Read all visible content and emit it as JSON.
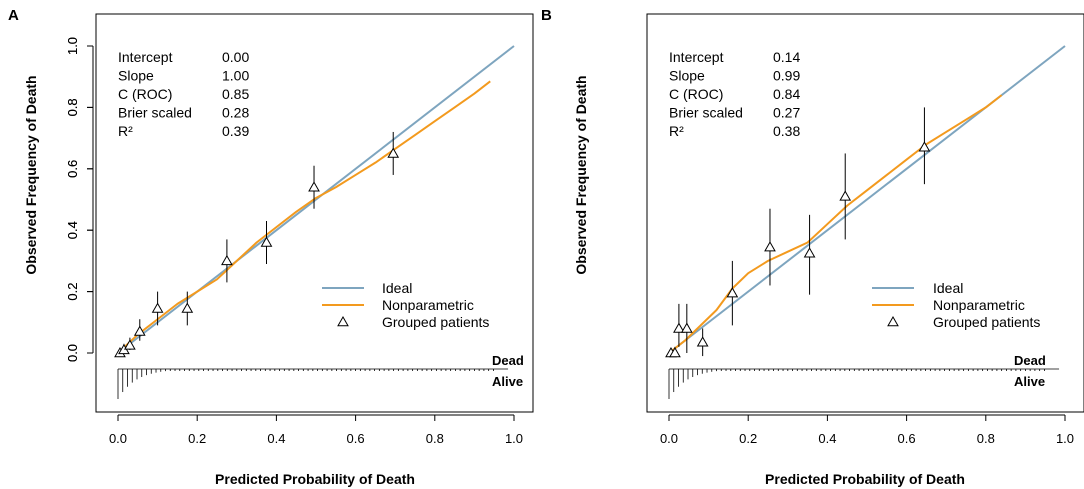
{
  "chart_data": [
    {
      "type": "scatter",
      "panel_label": "A",
      "xlabel": "Predicted Probability of Death",
      "ylabel": "Observed Frequency of Death",
      "xlim": [
        0,
        1
      ],
      "ylim": [
        -0.2,
        1.0
      ],
      "xticks": [
        "0.0",
        "0.2",
        "0.4",
        "0.6",
        "0.8",
        "1.0"
      ],
      "yticks": [
        "0.0",
        "0.2",
        "0.4",
        "0.6",
        "0.8",
        "1.0"
      ],
      "stats": [
        {
          "label": "Intercept",
          "value": "0.00"
        },
        {
          "label": "Slope",
          "value": "1.00"
        },
        {
          "label": "C (ROC)",
          "value": "0.85"
        },
        {
          "label": "Brier scaled",
          "value": "0.28"
        },
        {
          "label": "R²",
          "value": "0.39"
        }
      ],
      "legend": {
        "ideal": "Ideal",
        "nonparametric": "Nonparametric",
        "grouped": "Grouped patients",
        "position": "right"
      },
      "rug_labels": {
        "top": "Dead",
        "bottom": "Alive"
      },
      "series": [
        {
          "name": "Ideal",
          "color": "#7ea5bf",
          "x": [
            0,
            1
          ],
          "y": [
            0,
            1
          ]
        },
        {
          "name": "Nonparametric",
          "color": "#f39a1e",
          "x": [
            0.0,
            0.05,
            0.1,
            0.15,
            0.2,
            0.25,
            0.3,
            0.35,
            0.4,
            0.45,
            0.5,
            0.55,
            0.6,
            0.65,
            0.7,
            0.75,
            0.8,
            0.85,
            0.9,
            0.94
          ],
          "y": [
            0.0,
            0.06,
            0.11,
            0.16,
            0.2,
            0.24,
            0.3,
            0.36,
            0.41,
            0.46,
            0.505,
            0.54,
            0.58,
            0.62,
            0.665,
            0.71,
            0.755,
            0.8,
            0.845,
            0.885
          ]
        },
        {
          "name": "Grouped patients",
          "points": [
            {
              "x": 0.005,
              "y": 0.0,
              "lo": 0.0,
              "hi": 0.01
            },
            {
              "x": 0.015,
              "y": 0.01,
              "lo": 0.0,
              "hi": 0.03
            },
            {
              "x": 0.03,
              "y": 0.025,
              "lo": 0.01,
              "hi": 0.05
            },
            {
              "x": 0.055,
              "y": 0.07,
              "lo": 0.04,
              "hi": 0.11
            },
            {
              "x": 0.1,
              "y": 0.145,
              "lo": 0.09,
              "hi": 0.2
            },
            {
              "x": 0.175,
              "y": 0.145,
              "lo": 0.09,
              "hi": 0.2
            },
            {
              "x": 0.275,
              "y": 0.3,
              "lo": 0.23,
              "hi": 0.37
            },
            {
              "x": 0.375,
              "y": 0.36,
              "lo": 0.29,
              "hi": 0.43
            },
            {
              "x": 0.495,
              "y": 0.54,
              "lo": 0.47,
              "hi": 0.61
            },
            {
              "x": 0.695,
              "y": 0.65,
              "lo": 0.58,
              "hi": 0.72
            }
          ]
        }
      ]
    },
    {
      "type": "scatter",
      "panel_label": "B",
      "xlabel": "Predicted Probability of Death",
      "ylabel": "Observed Frequency of Death",
      "xlim": [
        0,
        1
      ],
      "ylim": [
        -0.2,
        1.0
      ],
      "xticks": [
        "0.0",
        "0.2",
        "0.4",
        "0.6",
        "0.8",
        "1.0"
      ],
      "yticks": [
        "0.0",
        "0.2",
        "0.4",
        "0.6",
        "0.8",
        "1.0"
      ],
      "stats": [
        {
          "label": "Intercept",
          "value": "0.14"
        },
        {
          "label": "Slope",
          "value": "0.99"
        },
        {
          "label": "C (ROC)",
          "value": "0.84"
        },
        {
          "label": "Brier scaled",
          "value": "0.27"
        },
        {
          "label": "R²",
          "value": "0.38"
        }
      ],
      "legend": {
        "ideal": "Ideal",
        "nonparametric": "Nonparametric",
        "grouped": "Grouped patients",
        "position": "right"
      },
      "rug_labels": {
        "top": "Dead",
        "bottom": "Alive"
      },
      "series": [
        {
          "name": "Ideal",
          "color": "#7ea5bf",
          "x": [
            0,
            1
          ],
          "y": [
            0,
            1
          ]
        },
        {
          "name": "Nonparametric",
          "color": "#f39a1e",
          "x": [
            0.0,
            0.04,
            0.08,
            0.12,
            0.16,
            0.2,
            0.25,
            0.3,
            0.35,
            0.4,
            0.45,
            0.5,
            0.55,
            0.6,
            0.65,
            0.7,
            0.75,
            0.8,
            0.84
          ],
          "y": [
            0.0,
            0.04,
            0.09,
            0.14,
            0.21,
            0.26,
            0.3,
            0.33,
            0.36,
            0.42,
            0.48,
            0.53,
            0.58,
            0.63,
            0.68,
            0.72,
            0.76,
            0.8,
            0.84
          ]
        },
        {
          "name": "Grouped patients",
          "points": [
            {
              "x": 0.005,
              "y": 0.0,
              "lo": 0.0,
              "hi": 0.01
            },
            {
              "x": 0.015,
              "y": 0.0,
              "lo": 0.0,
              "hi": 0.02
            },
            {
              "x": 0.025,
              "y": 0.08,
              "lo": 0.02,
              "hi": 0.16
            },
            {
              "x": 0.045,
              "y": 0.08,
              "lo": 0.0,
              "hi": 0.16
            },
            {
              "x": 0.085,
              "y": 0.035,
              "lo": -0.01,
              "hi": 0.08
            },
            {
              "x": 0.16,
              "y": 0.195,
              "lo": 0.09,
              "hi": 0.3
            },
            {
              "x": 0.255,
              "y": 0.345,
              "lo": 0.22,
              "hi": 0.47
            },
            {
              "x": 0.355,
              "y": 0.325,
              "lo": 0.19,
              "hi": 0.45
            },
            {
              "x": 0.445,
              "y": 0.51,
              "lo": 0.37,
              "hi": 0.65
            },
            {
              "x": 0.645,
              "y": 0.67,
              "lo": 0.55,
              "hi": 0.8
            }
          ]
        }
      ]
    }
  ]
}
